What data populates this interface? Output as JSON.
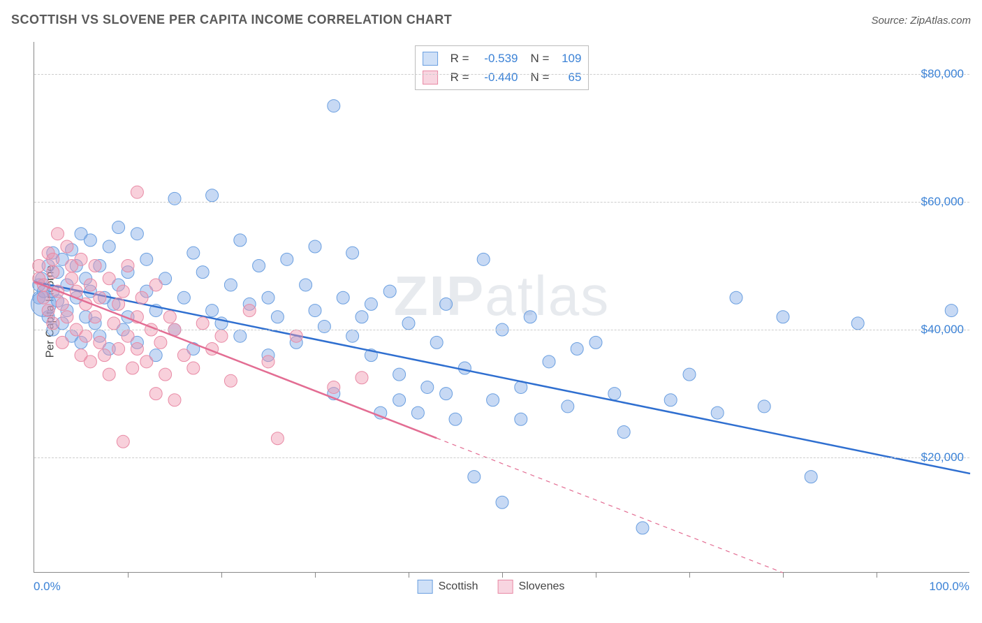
{
  "title": "SCOTTISH VS SLOVENE PER CAPITA INCOME CORRELATION CHART",
  "source": "Source: ZipAtlas.com",
  "watermark_bold": "ZIP",
  "watermark_light": "atlas",
  "ylabel": "Per Capita Income",
  "xaxis": {
    "min_label": "0.0%",
    "max_label": "100.0%",
    "xlim": [
      0,
      100
    ],
    "tick_positions": [
      10,
      20,
      30,
      40,
      50,
      60,
      70,
      80,
      90
    ]
  },
  "yaxis": {
    "ylim": [
      2000,
      85000
    ],
    "ticks": [
      {
        "value": 20000,
        "label": "$20,000"
      },
      {
        "value": 40000,
        "label": "$40,000"
      },
      {
        "value": 60000,
        "label": "$60,000"
      },
      {
        "value": 80000,
        "label": "$80,000"
      }
    ],
    "label_color": "#3b82d6",
    "grid_color": "#cccccc"
  },
  "series": [
    {
      "name": "Scottish",
      "fill": "rgba(130,170,230,0.45)",
      "stroke": "#6a9fe0",
      "swatch_fill": "#cfe0f7",
      "swatch_border": "#6a9fe0",
      "marker_radius": 9,
      "trend": {
        "x1": 0,
        "y1": 47500,
        "x2": 100,
        "y2": 17500,
        "solid_until_x": 100,
        "color": "#2f6fd0",
        "width": 2.5
      },
      "stats": {
        "R": "-0.539",
        "N": "109"
      },
      "points": [
        [
          0.5,
          45000
        ],
        [
          0.5,
          47000
        ],
        [
          0.8,
          48000
        ],
        [
          1,
          44000,
          18
        ],
        [
          1,
          46000
        ],
        [
          1.5,
          50000
        ],
        [
          1.5,
          42000
        ],
        [
          2,
          52000
        ],
        [
          2,
          40000
        ],
        [
          2,
          46000
        ],
        [
          2.5,
          44500
        ],
        [
          2.5,
          49000
        ],
        [
          3,
          51000
        ],
        [
          3,
          41000
        ],
        [
          3.5,
          47000
        ],
        [
          3.5,
          43000
        ],
        [
          4,
          52500
        ],
        [
          4,
          39000
        ],
        [
          4.5,
          45000
        ],
        [
          4.5,
          50000
        ],
        [
          5,
          55000
        ],
        [
          5,
          38000
        ],
        [
          5.5,
          48000
        ],
        [
          5.5,
          42000
        ],
        [
          6,
          46000
        ],
        [
          6,
          54000
        ],
        [
          6.5,
          41000
        ],
        [
          7,
          50000
        ],
        [
          7,
          39000
        ],
        [
          7.5,
          45000
        ],
        [
          8,
          53000
        ],
        [
          8,
          37000
        ],
        [
          8.5,
          44000
        ],
        [
          9,
          47000
        ],
        [
          9,
          56000
        ],
        [
          9.5,
          40000
        ],
        [
          10,
          49000
        ],
        [
          10,
          42000
        ],
        [
          11,
          55000
        ],
        [
          11,
          38000
        ],
        [
          12,
          46000
        ],
        [
          12,
          51000
        ],
        [
          13,
          43000
        ],
        [
          13,
          36000
        ],
        [
          14,
          48000
        ],
        [
          15,
          60500
        ],
        [
          15,
          40000
        ],
        [
          16,
          45000
        ],
        [
          17,
          52000
        ],
        [
          17,
          37000
        ],
        [
          18,
          49000
        ],
        [
          19,
          43000
        ],
        [
          19,
          61000
        ],
        [
          20,
          41000
        ],
        [
          21,
          47000
        ],
        [
          22,
          39000
        ],
        [
          22,
          54000
        ],
        [
          23,
          44000
        ],
        [
          24,
          50000
        ],
        [
          25,
          36000
        ],
        [
          25,
          45000
        ],
        [
          26,
          42000
        ],
        [
          27,
          51000
        ],
        [
          28,
          38000
        ],
        [
          29,
          47000
        ],
        [
          30,
          43000
        ],
        [
          30,
          53000
        ],
        [
          31,
          40500
        ],
        [
          32,
          75000
        ],
        [
          32,
          30000
        ],
        [
          33,
          45000
        ],
        [
          34,
          39000
        ],
        [
          34,
          52000
        ],
        [
          35,
          42000
        ],
        [
          36,
          36000
        ],
        [
          36,
          44000
        ],
        [
          37,
          27000
        ],
        [
          38,
          46000
        ],
        [
          39,
          33000
        ],
        [
          39,
          29000
        ],
        [
          40,
          41000
        ],
        [
          41,
          27000
        ],
        [
          42,
          31000
        ],
        [
          43,
          38000
        ],
        [
          44,
          30000
        ],
        [
          44,
          44000
        ],
        [
          45,
          26000
        ],
        [
          46,
          34000
        ],
        [
          47,
          17000
        ],
        [
          48,
          51000
        ],
        [
          49,
          29000
        ],
        [
          50,
          40000
        ],
        [
          50,
          13000
        ],
        [
          52,
          26000
        ],
        [
          52,
          31000
        ],
        [
          53,
          42000
        ],
        [
          55,
          35000
        ],
        [
          57,
          28000
        ],
        [
          58,
          37000
        ],
        [
          60,
          38000
        ],
        [
          62,
          30000
        ],
        [
          63,
          24000
        ],
        [
          65,
          9000
        ],
        [
          68,
          29000
        ],
        [
          70,
          33000
        ],
        [
          73,
          27000
        ],
        [
          75,
          45000
        ],
        [
          78,
          28000
        ],
        [
          80,
          42000
        ],
        [
          83,
          17000
        ],
        [
          88,
          41000
        ],
        [
          98,
          43000
        ]
      ]
    },
    {
      "name": "Slovenes",
      "fill": "rgba(240,150,175,0.45)",
      "stroke": "#e88aa5",
      "swatch_fill": "#f8d5e0",
      "swatch_border": "#e88aa5",
      "marker_radius": 9,
      "trend": {
        "x1": 0,
        "y1": 47500,
        "x2": 80,
        "y2": 2000,
        "solid_until_x": 43,
        "color": "#e36d93",
        "width": 2.5
      },
      "stats": {
        "R": "-0.440",
        "N": "65"
      },
      "points": [
        [
          0.5,
          48000
        ],
        [
          0.5,
          50000
        ],
        [
          1,
          45000
        ],
        [
          1,
          47000
        ],
        [
          1.5,
          52000
        ],
        [
          1.5,
          43000
        ],
        [
          2,
          49000
        ],
        [
          2,
          41000
        ],
        [
          2,
          51000
        ],
        [
          2.5,
          46000
        ],
        [
          2.5,
          55000
        ],
        [
          3,
          44000
        ],
        [
          3,
          38000
        ],
        [
          3.5,
          53000
        ],
        [
          3.5,
          42000
        ],
        [
          4,
          48000
        ],
        [
          4,
          50000
        ],
        [
          4.5,
          40000
        ],
        [
          4.5,
          46000
        ],
        [
          5,
          36000
        ],
        [
          5,
          51000
        ],
        [
          5.5,
          44000
        ],
        [
          5.5,
          39000
        ],
        [
          6,
          47000
        ],
        [
          6,
          35000
        ],
        [
          6.5,
          50000
        ],
        [
          6.5,
          42000
        ],
        [
          7,
          38000
        ],
        [
          7,
          45000
        ],
        [
          7.5,
          36000
        ],
        [
          8,
          48000
        ],
        [
          8,
          33000
        ],
        [
          8.5,
          41000
        ],
        [
          9,
          44000
        ],
        [
          9,
          37000
        ],
        [
          9.5,
          46000
        ],
        [
          9.5,
          22500
        ],
        [
          10,
          39000
        ],
        [
          10,
          50000
        ],
        [
          10.5,
          34000
        ],
        [
          11,
          42000
        ],
        [
          11,
          37000
        ],
        [
          11,
          61500
        ],
        [
          11.5,
          45000
        ],
        [
          12,
          35000
        ],
        [
          12.5,
          40000
        ],
        [
          13,
          30000
        ],
        [
          13,
          47000
        ],
        [
          13.5,
          38000
        ],
        [
          14,
          33000
        ],
        [
          14.5,
          42000
        ],
        [
          15,
          29000
        ],
        [
          15,
          40000
        ],
        [
          16,
          36000
        ],
        [
          17,
          34000
        ],
        [
          18,
          41000
        ],
        [
          19,
          37000
        ],
        [
          20,
          39000
        ],
        [
          21,
          32000
        ],
        [
          23,
          43000
        ],
        [
          25,
          35000
        ],
        [
          26,
          23000
        ],
        [
          28,
          39000
        ],
        [
          32,
          31000
        ],
        [
          35,
          32500
        ]
      ]
    }
  ],
  "stats_box": {
    "R_label": "R =",
    "N_label": "N ="
  },
  "legend": {
    "items": [
      "Scottish",
      "Slovenes"
    ]
  },
  "background_color": "#ffffff"
}
